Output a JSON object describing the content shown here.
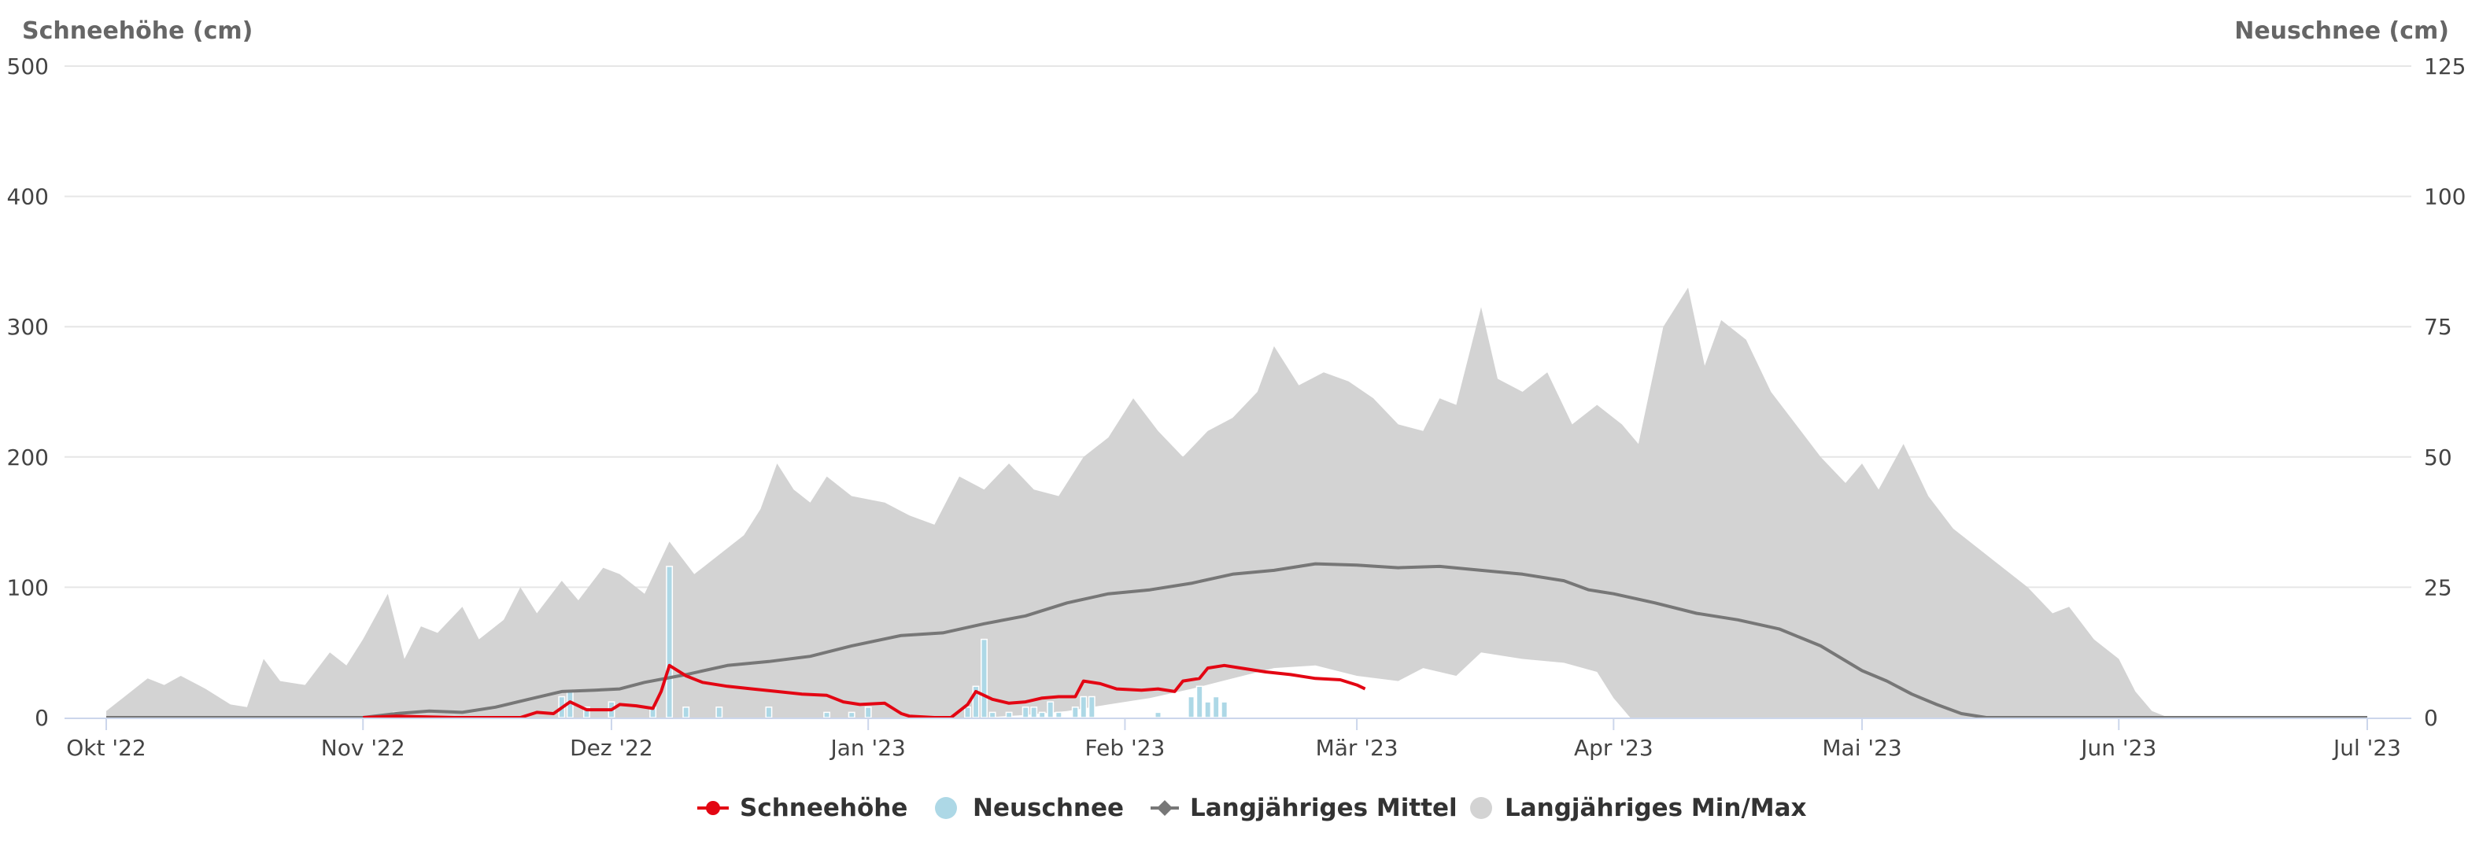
{
  "chart_data": {
    "type": "area",
    "y_left": {
      "title": "Schneehöhe (cm)",
      "min": 0,
      "max": 500,
      "ticks": [
        0,
        100,
        200,
        300,
        400,
        500
      ]
    },
    "y_right": {
      "title": "Neuschnee (cm)",
      "min": 0,
      "max": 125,
      "ticks": [
        0,
        25,
        50,
        75,
        100,
        125
      ]
    },
    "x": {
      "start": "2022-10-01",
      "end": "2023-07-01",
      "tick_labels": [
        "Okt '22",
        "Nov '22",
        "Dez '22",
        "Jan '23",
        "Feb '23",
        "Mär '23",
        "Apr '23",
        "Mai '23",
        "Jun '23",
        "Jul '23"
      ],
      "tick_dates": [
        "2022-10-01",
        "2022-11-01",
        "2022-12-01",
        "2023-01-01",
        "2023-02-01",
        "2023-03-01",
        "2023-04-01",
        "2023-05-01",
        "2023-06-01",
        "2023-07-01"
      ]
    },
    "grid": true,
    "legend_position": "bottom-center",
    "series": [
      {
        "name": "Schneehöhe",
        "type": "line",
        "color": "#e30613",
        "axis": "left",
        "points": [
          [
            "2022-11-01",
            0
          ],
          [
            "2022-11-05",
            1
          ],
          [
            "2022-11-12",
            0
          ],
          [
            "2022-11-20",
            0
          ],
          [
            "2022-11-22",
            4
          ],
          [
            "2022-11-24",
            3
          ],
          [
            "2022-11-26",
            12
          ],
          [
            "2022-11-28",
            6
          ],
          [
            "2022-12-01",
            6
          ],
          [
            "2022-12-02",
            10
          ],
          [
            "2022-12-04",
            9
          ],
          [
            "2022-12-06",
            7
          ],
          [
            "2022-12-07",
            20
          ],
          [
            "2022-12-08",
            40
          ],
          [
            "2022-12-10",
            32
          ],
          [
            "2022-12-12",
            27
          ],
          [
            "2022-12-15",
            24
          ],
          [
            "2022-12-18",
            22
          ],
          [
            "2022-12-21",
            20
          ],
          [
            "2022-12-24",
            18
          ],
          [
            "2022-12-27",
            17
          ],
          [
            "2022-12-29",
            12
          ],
          [
            "2022-12-31",
            10
          ],
          [
            "2023-01-03",
            11
          ],
          [
            "2023-01-05",
            3
          ],
          [
            "2023-01-06",
            1
          ],
          [
            "2023-01-09",
            0
          ],
          [
            "2023-01-11",
            0
          ],
          [
            "2023-01-13",
            10
          ],
          [
            "2023-01-14",
            20
          ],
          [
            "2023-01-16",
            14
          ],
          [
            "2023-01-18",
            11
          ],
          [
            "2023-01-20",
            12
          ],
          [
            "2023-01-22",
            15
          ],
          [
            "2023-01-24",
            16
          ],
          [
            "2023-01-26",
            16
          ],
          [
            "2023-01-27",
            28
          ],
          [
            "2023-01-29",
            26
          ],
          [
            "2023-01-31",
            22
          ],
          [
            "2023-02-03",
            21
          ],
          [
            "2023-02-05",
            22
          ],
          [
            "2023-02-07",
            20
          ],
          [
            "2023-02-08",
            28
          ],
          [
            "2023-02-10",
            30
          ],
          [
            "2023-02-11",
            38
          ],
          [
            "2023-02-13",
            40
          ],
          [
            "2023-02-15",
            38
          ],
          [
            "2023-02-18",
            35
          ],
          [
            "2023-02-21",
            33
          ],
          [
            "2023-02-24",
            30
          ],
          [
            "2023-02-27",
            29
          ],
          [
            "2023-03-01",
            25
          ],
          [
            "2023-03-02",
            22
          ]
        ]
      },
      {
        "name": "Neuschnee",
        "type": "column",
        "color": "#add8e6",
        "axis": "right",
        "bars": [
          [
            "2022-11-05",
            1
          ],
          [
            "2022-11-25",
            4
          ],
          [
            "2022-11-26",
            5
          ],
          [
            "2022-11-28",
            2
          ],
          [
            "2022-12-01",
            3
          ],
          [
            "2022-12-06",
            2
          ],
          [
            "2022-12-08",
            29
          ],
          [
            "2022-12-10",
            2
          ],
          [
            "2022-12-14",
            2
          ],
          [
            "2022-12-20",
            2
          ],
          [
            "2022-12-27",
            1
          ],
          [
            "2022-12-30",
            1
          ],
          [
            "2023-01-01",
            2
          ],
          [
            "2023-01-13",
            2
          ],
          [
            "2023-01-14",
            6
          ],
          [
            "2023-01-15",
            15
          ],
          [
            "2023-01-16",
            1
          ],
          [
            "2023-01-18",
            1
          ],
          [
            "2023-01-20",
            2
          ],
          [
            "2023-01-21",
            2
          ],
          [
            "2023-01-22",
            1
          ],
          [
            "2023-01-23",
            3
          ],
          [
            "2023-01-24",
            1
          ],
          [
            "2023-01-26",
            2
          ],
          [
            "2023-01-27",
            4
          ],
          [
            "2023-01-28",
            4
          ],
          [
            "2023-02-05",
            1
          ],
          [
            "2023-02-09",
            4
          ],
          [
            "2023-02-10",
            6
          ],
          [
            "2023-02-11",
            3
          ],
          [
            "2023-02-12",
            4
          ],
          [
            "2023-02-13",
            3
          ]
        ]
      },
      {
        "name": "Langjähriges Mittel",
        "type": "line",
        "color": "#777777",
        "axis": "left",
        "points": [
          [
            "2022-10-01",
            0
          ],
          [
            "2022-10-15",
            0
          ],
          [
            "2022-11-01",
            0
          ],
          [
            "2022-11-05",
            3
          ],
          [
            "2022-11-09",
            5
          ],
          [
            "2022-11-13",
            4
          ],
          [
            "2022-11-17",
            8
          ],
          [
            "2022-11-21",
            14
          ],
          [
            "2022-11-25",
            20
          ],
          [
            "2022-11-29",
            21
          ],
          [
            "2022-12-02",
            22
          ],
          [
            "2022-12-05",
            27
          ],
          [
            "2022-12-10",
            33
          ],
          [
            "2022-12-15",
            40
          ],
          [
            "2022-12-20",
            43
          ],
          [
            "2022-12-25",
            47
          ],
          [
            "2022-12-30",
            55
          ],
          [
            "2023-01-05",
            63
          ],
          [
            "2023-01-10",
            65
          ],
          [
            "2023-01-15",
            72
          ],
          [
            "2023-01-20",
            78
          ],
          [
            "2023-01-25",
            88
          ],
          [
            "2023-01-30",
            95
          ],
          [
            "2023-02-04",
            98
          ],
          [
            "2023-02-09",
            103
          ],
          [
            "2023-02-14",
            110
          ],
          [
            "2023-02-19",
            113
          ],
          [
            "2023-02-24",
            118
          ],
          [
            "2023-03-01",
            117
          ],
          [
            "2023-03-06",
            115
          ],
          [
            "2023-03-11",
            116
          ],
          [
            "2023-03-16",
            113
          ],
          [
            "2023-03-21",
            110
          ],
          [
            "2023-03-26",
            105
          ],
          [
            "2023-03-29",
            98
          ],
          [
            "2023-04-01",
            95
          ],
          [
            "2023-04-06",
            88
          ],
          [
            "2023-04-11",
            80
          ],
          [
            "2023-04-16",
            75
          ],
          [
            "2023-04-21",
            68
          ],
          [
            "2023-04-26",
            55
          ],
          [
            "2023-05-01",
            36
          ],
          [
            "2023-05-04",
            28
          ],
          [
            "2023-05-07",
            18
          ],
          [
            "2023-05-10",
            10
          ],
          [
            "2023-05-13",
            3
          ],
          [
            "2023-05-16",
            0
          ],
          [
            "2023-07-01",
            0
          ]
        ]
      },
      {
        "name": "Langjähriges Min/Max",
        "type": "arearange",
        "color": "#d3d3d3",
        "axis": "left",
        "max_points": [
          [
            "2022-10-01",
            5
          ],
          [
            "2022-10-03",
            15
          ],
          [
            "2022-10-06",
            30
          ],
          [
            "2022-10-08",
            25
          ],
          [
            "2022-10-10",
            32
          ],
          [
            "2022-10-13",
            22
          ],
          [
            "2022-10-16",
            10
          ],
          [
            "2022-10-18",
            8
          ],
          [
            "2022-10-20",
            45
          ],
          [
            "2022-10-22",
            28
          ],
          [
            "2022-10-25",
            25
          ],
          [
            "2022-10-28",
            50
          ],
          [
            "2022-10-30",
            40
          ],
          [
            "2022-11-01",
            60
          ],
          [
            "2022-11-04",
            95
          ],
          [
            "2022-11-06",
            45
          ],
          [
            "2022-11-08",
            70
          ],
          [
            "2022-11-10",
            65
          ],
          [
            "2022-11-13",
            85
          ],
          [
            "2022-11-15",
            60
          ],
          [
            "2022-11-18",
            75
          ],
          [
            "2022-11-20",
            100
          ],
          [
            "2022-11-22",
            80
          ],
          [
            "2022-11-25",
            105
          ],
          [
            "2022-11-27",
            90
          ],
          [
            "2022-11-30",
            115
          ],
          [
            "2022-12-02",
            110
          ],
          [
            "2022-12-05",
            95
          ],
          [
            "2022-12-08",
            135
          ],
          [
            "2022-12-11",
            110
          ],
          [
            "2022-12-14",
            125
          ],
          [
            "2022-12-17",
            140
          ],
          [
            "2022-12-19",
            160
          ],
          [
            "2022-12-21",
            195
          ],
          [
            "2022-12-23",
            175
          ],
          [
            "2022-12-25",
            165
          ],
          [
            "2022-12-27",
            185
          ],
          [
            "2022-12-30",
            170
          ],
          [
            "2023-01-03",
            165
          ],
          [
            "2023-01-06",
            155
          ],
          [
            "2023-01-09",
            148
          ],
          [
            "2023-01-12",
            185
          ],
          [
            "2023-01-15",
            175
          ],
          [
            "2023-01-18",
            195
          ],
          [
            "2023-01-21",
            175
          ],
          [
            "2023-01-24",
            170
          ],
          [
            "2023-01-27",
            200
          ],
          [
            "2023-01-30",
            215
          ],
          [
            "2023-02-02",
            245
          ],
          [
            "2023-02-05",
            220
          ],
          [
            "2023-02-08",
            200
          ],
          [
            "2023-02-11",
            220
          ],
          [
            "2023-02-14",
            230
          ],
          [
            "2023-02-17",
            250
          ],
          [
            "2023-02-19",
            285
          ],
          [
            "2023-02-22",
            255
          ],
          [
            "2023-02-25",
            265
          ],
          [
            "2023-02-28",
            258
          ],
          [
            "2023-03-03",
            245
          ],
          [
            "2023-03-06",
            225
          ],
          [
            "2023-03-09",
            220
          ],
          [
            "2023-03-11",
            245
          ],
          [
            "2023-03-13",
            240
          ],
          [
            "2023-03-16",
            315
          ],
          [
            "2023-03-18",
            260
          ],
          [
            "2023-03-21",
            250
          ],
          [
            "2023-03-24",
            265
          ],
          [
            "2023-03-27",
            225
          ],
          [
            "2023-03-30",
            240
          ],
          [
            "2023-04-02",
            225
          ],
          [
            "2023-04-04",
            210
          ],
          [
            "2023-04-07",
            300
          ],
          [
            "2023-04-10",
            330
          ],
          [
            "2023-04-12",
            270
          ],
          [
            "2023-04-14",
            305
          ],
          [
            "2023-04-17",
            290
          ],
          [
            "2023-04-20",
            250
          ],
          [
            "2023-04-23",
            225
          ],
          [
            "2023-04-26",
            200
          ],
          [
            "2023-04-29",
            180
          ],
          [
            "2023-05-01",
            195
          ],
          [
            "2023-05-03",
            175
          ],
          [
            "2023-05-06",
            210
          ],
          [
            "2023-05-09",
            170
          ],
          [
            "2023-05-12",
            145
          ],
          [
            "2023-05-15",
            130
          ],
          [
            "2023-05-18",
            115
          ],
          [
            "2023-05-21",
            100
          ],
          [
            "2023-05-24",
            80
          ],
          [
            "2023-05-26",
            85
          ],
          [
            "2023-05-29",
            60
          ],
          [
            "2023-06-01",
            45
          ],
          [
            "2023-06-03",
            20
          ],
          [
            "2023-06-05",
            5
          ],
          [
            "2023-06-07",
            0
          ],
          [
            "2023-07-01",
            0
          ]
        ],
        "min_points": [
          [
            "2022-10-01",
            0
          ],
          [
            "2023-01-15",
            0
          ],
          [
            "2023-01-20",
            2
          ],
          [
            "2023-01-25",
            5
          ],
          [
            "2023-01-30",
            10
          ],
          [
            "2023-02-04",
            15
          ],
          [
            "2023-02-09",
            22
          ],
          [
            "2023-02-14",
            30
          ],
          [
            "2023-02-19",
            38
          ],
          [
            "2023-02-24",
            40
          ],
          [
            "2023-03-01",
            32
          ],
          [
            "2023-03-06",
            28
          ],
          [
            "2023-03-09",
            38
          ],
          [
            "2023-03-13",
            32
          ],
          [
            "2023-03-16",
            50
          ],
          [
            "2023-03-21",
            45
          ],
          [
            "2023-03-26",
            42
          ],
          [
            "2023-03-30",
            35
          ],
          [
            "2023-04-01",
            15
          ],
          [
            "2023-04-03",
            0
          ],
          [
            "2023-07-01",
            0
          ]
        ]
      }
    ]
  },
  "legend": [
    {
      "label": "Schneehöhe",
      "icon": "line-dot-icon",
      "color": "#e30613"
    },
    {
      "label": "Neuschnee",
      "icon": "circle-icon",
      "color": "#add8e6"
    },
    {
      "label": "Langjähriges Mittel",
      "icon": "line-diamond-icon",
      "color": "#777777"
    },
    {
      "label": "Langjähriges Min/Max",
      "icon": "circle-icon",
      "color": "#d3d3d3"
    }
  ]
}
